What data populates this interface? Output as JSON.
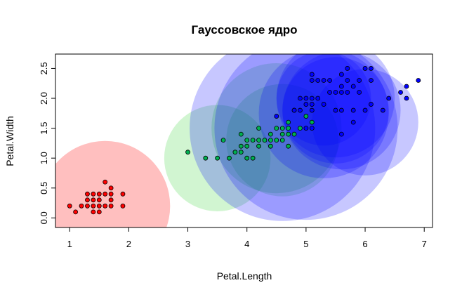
{
  "chart_data": {
    "type": "scatter",
    "title": "Гауссовское ядро",
    "xlabel": "Petal.Length",
    "ylabel": "Petal.Width",
    "xlim": [
      0.76,
      7.14
    ],
    "ylim": [
      -0.16,
      2.74
    ],
    "x_ticks": [
      1,
      2,
      3,
      4,
      5,
      6,
      7
    ],
    "y_ticks": [
      0.0,
      0.5,
      1.0,
      1.5,
      2.0,
      2.5
    ],
    "grid": false,
    "legend": "none",
    "series": [
      {
        "color": "#ff0000",
        "fill": "rgba(255,0,0,0.25)",
        "points": [
          [
            1.0,
            0.2
          ],
          [
            1.1,
            0.1
          ],
          [
            1.2,
            0.2
          ],
          [
            1.3,
            0.4
          ],
          [
            1.3,
            0.3
          ],
          [
            1.3,
            0.2
          ],
          [
            1.4,
            0.1
          ],
          [
            1.4,
            0.2
          ],
          [
            1.4,
            0.3
          ],
          [
            1.4,
            0.4
          ],
          [
            1.5,
            0.1
          ],
          [
            1.5,
            0.2
          ],
          [
            1.5,
            0.3
          ],
          [
            1.5,
            0.4
          ],
          [
            1.6,
            0.2
          ],
          [
            1.6,
            0.4
          ],
          [
            1.6,
            0.6
          ],
          [
            1.7,
            0.2
          ],
          [
            1.7,
            0.3
          ],
          [
            1.7,
            0.4
          ],
          [
            1.7,
            0.5
          ],
          [
            1.9,
            0.2
          ],
          [
            1.9,
            0.4
          ]
        ],
        "kernels": [
          {
            "cx": 1.6,
            "cy": 0.2,
            "r": 1.1
          }
        ]
      },
      {
        "color": "#00b050",
        "fill": "rgba(0,200,0,0.18)",
        "points": [
          [
            3.0,
            1.1
          ],
          [
            3.3,
            1.0
          ],
          [
            3.5,
            1.0
          ],
          [
            3.6,
            1.3
          ],
          [
            3.7,
            1.0
          ],
          [
            3.8,
            1.1
          ],
          [
            3.9,
            1.1
          ],
          [
            3.9,
            1.2
          ],
          [
            3.9,
            1.4
          ],
          [
            4.0,
            1.0
          ],
          [
            4.0,
            1.2
          ],
          [
            4.0,
            1.3
          ],
          [
            4.1,
            1.0
          ],
          [
            4.1,
            1.3
          ],
          [
            4.2,
            1.2
          ],
          [
            4.2,
            1.3
          ],
          [
            4.2,
            1.5
          ],
          [
            4.3,
            1.3
          ],
          [
            4.4,
            1.2
          ],
          [
            4.4,
            1.3
          ],
          [
            4.4,
            1.4
          ],
          [
            4.5,
            1.3
          ],
          [
            4.5,
            1.5
          ],
          [
            4.6,
            1.3
          ],
          [
            4.6,
            1.4
          ],
          [
            4.6,
            1.5
          ],
          [
            4.7,
            1.2
          ],
          [
            4.7,
            1.4
          ],
          [
            4.7,
            1.5
          ],
          [
            4.7,
            1.6
          ],
          [
            4.8,
            1.4
          ],
          [
            4.8,
            1.8
          ],
          [
            4.9,
            1.5
          ],
          [
            5.0,
            1.7
          ],
          [
            5.1,
            1.6
          ]
        ],
        "kernels": [
          {
            "cx": 3.5,
            "cy": 1.0,
            "r": 0.9
          },
          {
            "cx": 4.5,
            "cy": 1.5,
            "r": 1.1
          },
          {
            "cx": 4.6,
            "cy": 1.3,
            "r": 0.95
          }
        ]
      },
      {
        "color": "#0000ff",
        "fill": "rgba(0,0,255,0.22)",
        "points": [
          [
            4.5,
            1.7
          ],
          [
            4.8,
            1.8
          ],
          [
            4.9,
            1.8
          ],
          [
            4.9,
            2.0
          ],
          [
            5.0,
            1.5
          ],
          [
            5.0,
            1.9
          ],
          [
            5.0,
            2.0
          ],
          [
            5.1,
            1.5
          ],
          [
            5.1,
            1.8
          ],
          [
            5.1,
            1.9
          ],
          [
            5.1,
            2.0
          ],
          [
            5.1,
            2.3
          ],
          [
            5.1,
            2.4
          ],
          [
            5.2,
            2.0
          ],
          [
            5.2,
            2.3
          ],
          [
            5.3,
            1.9
          ],
          [
            5.3,
            2.3
          ],
          [
            5.4,
            2.1
          ],
          [
            5.4,
            2.3
          ],
          [
            5.5,
            1.8
          ],
          [
            5.5,
            2.1
          ],
          [
            5.6,
            1.4
          ],
          [
            5.6,
            1.8
          ],
          [
            5.6,
            2.1
          ],
          [
            5.6,
            2.2
          ],
          [
            5.6,
            2.4
          ],
          [
            5.7,
            2.1
          ],
          [
            5.7,
            2.3
          ],
          [
            5.7,
            2.5
          ],
          [
            5.8,
            1.6
          ],
          [
            5.8,
            1.8
          ],
          [
            5.8,
            2.2
          ],
          [
            5.9,
            2.1
          ],
          [
            5.9,
            2.3
          ],
          [
            6.0,
            1.8
          ],
          [
            6.0,
            2.5
          ],
          [
            6.1,
            1.9
          ],
          [
            6.1,
            2.3
          ],
          [
            6.1,
            2.5
          ],
          [
            6.3,
            1.8
          ],
          [
            6.4,
            2.0
          ],
          [
            6.6,
            2.1
          ],
          [
            6.7,
            2.0
          ],
          [
            6.7,
            2.2
          ],
          [
            6.9,
            2.3
          ]
        ],
        "kernels": [
          {
            "cx": 4.6,
            "cy": 1.5,
            "r": 1.57
          },
          {
            "cx": 5.0,
            "cy": 1.5,
            "r": 1.55
          },
          {
            "cx": 5.3,
            "cy": 1.75,
            "r": 1.1
          },
          {
            "cx": 5.5,
            "cy": 2.0,
            "r": 1.0
          },
          {
            "cx": 5.5,
            "cy": 1.8,
            "r": 0.9
          },
          {
            "cx": 5.6,
            "cy": 1.8,
            "r": 1.0
          },
          {
            "cx": 6.0,
            "cy": 1.6,
            "r": 0.9
          },
          {
            "cx": 5.3,
            "cy": 2.0,
            "r": 0.8
          }
        ]
      }
    ]
  }
}
